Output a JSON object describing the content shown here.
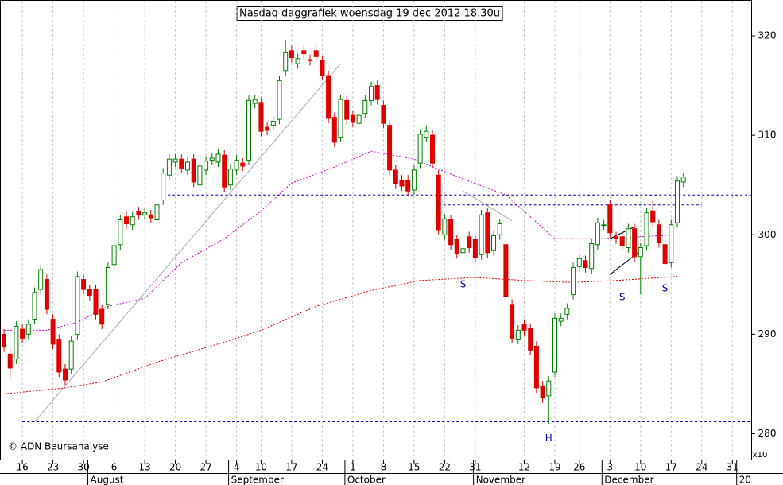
{
  "chart_data": {
    "type": "candlestick",
    "title": "Nasdaq daggrafiek woensdag 19 dec 2012 18.30u",
    "copyright": "© ADN Beursanalyse",
    "scale_note": "x10",
    "up_color": "#008000",
    "down_color": "#e00000",
    "dates": [
      "2012-07-11",
      "2012-07-12",
      "2012-07-13",
      "2012-07-16",
      "2012-07-17",
      "2012-07-18",
      "2012-07-19",
      "2012-07-20",
      "2012-07-23",
      "2012-07-24",
      "2012-07-25",
      "2012-07-26",
      "2012-07-27",
      "2012-07-30",
      "2012-07-31",
      "2012-08-01",
      "2012-08-02",
      "2012-08-03",
      "2012-08-06",
      "2012-08-07",
      "2012-08-08",
      "2012-08-09",
      "2012-08-10",
      "2012-08-13",
      "2012-08-14",
      "2012-08-15",
      "2012-08-16",
      "2012-08-17",
      "2012-08-20",
      "2012-08-21",
      "2012-08-22",
      "2012-08-23",
      "2012-08-24",
      "2012-08-27",
      "2012-08-28",
      "2012-08-29",
      "2012-08-30",
      "2012-08-31",
      "2012-09-04",
      "2012-09-05",
      "2012-09-06",
      "2012-09-07",
      "2012-09-10",
      "2012-09-11",
      "2012-09-12",
      "2012-09-13",
      "2012-09-14",
      "2012-09-17",
      "2012-09-18",
      "2012-09-19",
      "2012-09-20",
      "2012-09-21",
      "2012-09-24",
      "2012-09-25",
      "2012-09-26",
      "2012-09-27",
      "2012-09-28",
      "2012-10-01",
      "2012-10-02",
      "2012-10-03",
      "2012-10-04",
      "2012-10-05",
      "2012-10-08",
      "2012-10-09",
      "2012-10-10",
      "2012-10-11",
      "2012-10-12",
      "2012-10-15",
      "2012-10-16",
      "2012-10-17",
      "2012-10-18",
      "2012-10-19",
      "2012-10-22",
      "2012-10-23",
      "2012-10-24",
      "2012-10-25",
      "2012-10-26",
      "2012-10-31",
      "2012-11-01",
      "2012-11-02",
      "2012-11-05",
      "2012-11-06",
      "2012-11-07",
      "2012-11-08",
      "2012-11-09",
      "2012-11-12",
      "2012-11-13",
      "2012-11-14",
      "2012-11-15",
      "2012-11-16",
      "2012-11-19",
      "2012-11-20",
      "2012-11-21",
      "2012-11-23",
      "2012-11-26",
      "2012-11-27",
      "2012-11-28",
      "2012-11-29",
      "2012-11-30",
      "2012-12-03",
      "2012-12-04",
      "2012-12-05",
      "2012-12-06",
      "2012-12-07",
      "2012-12-10",
      "2012-12-11",
      "2012-12-12",
      "2012-12-13",
      "2012-12-14",
      "2012-12-17",
      "2012-12-18",
      "2012-12-19"
    ],
    "open": [
      290.0,
      288.0,
      287.5,
      290.5,
      290.0,
      291.5,
      294.5,
      295.5,
      291.5,
      289.5,
      286.5,
      286.5,
      290.0,
      295.5,
      294.5,
      294.5,
      292.5,
      293.0,
      297.0,
      299.0,
      301.8,
      301.0,
      302.3,
      302.0,
      302.0,
      301.5,
      303.5,
      306.0,
      307.3,
      307.6,
      306.5,
      307.6,
      305.0,
      306.5,
      307.5,
      307.3,
      308.0,
      305.0,
      306.5,
      307.2,
      307.5,
      313.2,
      313.3,
      310.8,
      311.0,
      311.6,
      316.5,
      318.5,
      317.2,
      318.5,
      317.6,
      318.5,
      317.5,
      316.0,
      311.8,
      309.8,
      313.5,
      312.0,
      311.2,
      312.2,
      313.5,
      315.0,
      313.0,
      311.0,
      306.5,
      305.5,
      305.5,
      304.5,
      307.2,
      309.8,
      310.0,
      306.0,
      300.0,
      301.5,
      299.5,
      298.2,
      299.8,
      299.5,
      298.0,
      302.2,
      298.4,
      300.0,
      299.0,
      293.0,
      289.5,
      291.0,
      290.6,
      288.8,
      284.8,
      283.8,
      286.2,
      291.3,
      292.0,
      294.0,
      296.8,
      297.4,
      296.6,
      299.0,
      301.0,
      303.0,
      299.8,
      299.8,
      298.7,
      300.6,
      297.8,
      298.9,
      302.4,
      301.0,
      299.0,
      297.2,
      301.2,
      305.3
    ],
    "high": [
      290.5,
      288.5,
      291.3,
      291.0,
      291.5,
      294.7,
      297.0,
      296.0,
      292.0,
      290.0,
      287.0,
      289.8,
      296.3,
      296.0,
      295.0,
      295.0,
      293.0,
      297.2,
      299.4,
      302.0,
      302.3,
      302.3,
      302.8,
      302.7,
      302.5,
      303.5,
      306.7,
      308.1,
      308.1,
      308.1,
      307.8,
      308.1,
      307.4,
      307.9,
      308.2,
      308.6,
      308.5,
      307.1,
      308.0,
      307.7,
      314.0,
      314.1,
      313.8,
      311.3,
      311.9,
      316.0,
      319.6,
      319.0,
      318.2,
      319.0,
      318.1,
      319.0,
      318.0,
      316.5,
      312.3,
      314.1,
      314.0,
      312.5,
      312.5,
      314.0,
      315.4,
      315.5,
      313.5,
      311.5,
      307.0,
      306.0,
      306.0,
      307.0,
      310.6,
      311.0,
      310.5,
      306.5,
      302.1,
      302.0,
      300.0,
      299.1,
      300.3,
      300.0,
      302.5,
      302.7,
      300.4,
      301.6,
      299.5,
      293.5,
      290.9,
      291.5,
      291.1,
      289.3,
      285.3,
      285.8,
      292.1,
      292.1,
      293.1,
      297.2,
      298.1,
      297.9,
      299.6,
      301.7,
      301.5,
      303.5,
      300.3,
      300.3,
      301.1,
      301.1,
      299.2,
      302.7,
      303.4,
      301.5,
      299.5,
      301.5,
      305.9,
      306.2
    ],
    "low": [
      288.2,
      285.5,
      287.0,
      289.1,
      289.5,
      291.0,
      294.0,
      292.0,
      288.5,
      285.7,
      284.9,
      286.0,
      289.5,
      294.0,
      293.4,
      291.5,
      290.5,
      292.5,
      296.5,
      298.5,
      300.6,
      300.5,
      301.5,
      301.5,
      301.2,
      301.0,
      303.0,
      305.5,
      306.8,
      306.2,
      306.0,
      304.8,
      304.5,
      306.0,
      307.0,
      306.8,
      304.3,
      304.5,
      306.0,
      306.4,
      307.0,
      312.7,
      309.9,
      310.0,
      310.5,
      311.1,
      316.0,
      317.3,
      316.7,
      317.7,
      317.0,
      317.4,
      315.5,
      311.2,
      308.8,
      309.3,
      311.1,
      310.8,
      310.7,
      311.7,
      313.0,
      313.1,
      310.7,
      306.0,
      304.6,
      304.4,
      303.9,
      304.0,
      306.7,
      309.3,
      306.7,
      300.0,
      299.5,
      298.5,
      297.6,
      296.3,
      298.2,
      297.2,
      297.5,
      297.7,
      297.9,
      299.5,
      293.3,
      289.1,
      289.0,
      289.9,
      287.9,
      284.1,
      283.1,
      281.0,
      285.7,
      290.8,
      291.5,
      293.5,
      296.3,
      296.2,
      296.1,
      298.5,
      300.5,
      299.7,
      299.1,
      298.4,
      298.2,
      297.3,
      294.0,
      298.4,
      300.8,
      298.7,
      296.6,
      296.7,
      300.7,
      304.8
    ],
    "close": [
      288.7,
      286.6,
      290.8,
      289.6,
      291.0,
      294.2,
      296.5,
      292.5,
      289.0,
      286.2,
      285.4,
      289.3,
      295.8,
      294.5,
      293.9,
      292.0,
      291.0,
      296.7,
      298.9,
      301.5,
      301.1,
      301.8,
      302.0,
      302.2,
      301.7,
      303.0,
      306.2,
      307.6,
      307.6,
      306.7,
      307.3,
      305.3,
      306.9,
      307.4,
      307.7,
      308.1,
      304.8,
      306.6,
      307.5,
      306.9,
      313.5,
      313.6,
      310.4,
      310.5,
      311.4,
      315.5,
      318.3,
      317.8,
      317.7,
      318.2,
      317.5,
      317.9,
      316.0,
      311.7,
      309.3,
      313.6,
      311.6,
      311.3,
      312.0,
      313.5,
      314.9,
      313.6,
      311.2,
      306.5,
      305.1,
      304.9,
      304.4,
      306.5,
      310.1,
      310.4,
      307.2,
      300.5,
      301.6,
      299.0,
      298.1,
      298.6,
      298.7,
      297.7,
      302.0,
      298.2,
      299.9,
      301.1,
      293.8,
      289.6,
      290.4,
      290.4,
      288.4,
      284.6,
      283.6,
      285.3,
      291.6,
      291.6,
      292.6,
      296.7,
      297.6,
      296.7,
      299.1,
      301.2,
      301.0,
      300.2,
      299.6,
      298.9,
      300.6,
      297.8,
      298.7,
      302.2,
      301.3,
      299.2,
      297.1,
      301.0,
      305.4,
      305.8
    ],
    "moving_averages": [
      {
        "color": "#cc00cc",
        "x": [
          "2012-07-11",
          "2012-07-20",
          "2012-07-27",
          "2012-08-03",
          "2012-08-13",
          "2012-08-21",
          "2012-08-30",
          "2012-09-10",
          "2012-09-17",
          "2012-09-26",
          "2012-10-04",
          "2012-10-15",
          "2012-10-25",
          "2012-11-07",
          "2012-11-19",
          "2012-11-30",
          "2012-12-18"
        ],
        "values": [
          290.4,
          290.4,
          291.2,
          292.8,
          293.6,
          297.2,
          299.6,
          302.4,
          305.2,
          306.8,
          308.4,
          307.6,
          305.6,
          304.0,
          299.6,
          299.6,
          300.0
        ]
      },
      {
        "color": "#dd0000",
        "x": [
          "2012-07-11",
          "2012-07-25",
          "2012-08-02",
          "2012-08-15",
          "2012-08-30",
          "2012-09-10",
          "2012-09-21",
          "2012-10-04",
          "2012-10-16",
          "2012-10-31",
          "2012-11-12",
          "2012-11-23",
          "2012-12-04",
          "2012-12-18"
        ],
        "values": [
          284.0,
          284.6,
          285.2,
          287.2,
          289.2,
          290.4,
          292.8,
          294.4,
          295.4,
          295.7,
          295.4,
          295.2,
          295.4,
          295.8
        ]
      }
    ],
    "levels": [
      {
        "color": "#0000aa",
        "value": 304.0,
        "from": "2012-08-16"
      },
      {
        "color": "#0000aa",
        "value": 303.0,
        "from": "2012-10-19",
        "to": "2012-12-24"
      },
      {
        "color": "#0000aa",
        "value": 281.2,
        "from": "2012-07-16"
      }
    ],
    "trendlines": [
      {
        "color": "#aaaaaa",
        "from": "2012-07-18",
        "to": "2012-09-27",
        "values": [
          281.2,
          317.2
        ]
      },
      {
        "color": "#aaaaaa",
        "from": "2012-10-25",
        "to": "2012-11-08",
        "values": [
          304.4,
          301.4
        ]
      },
      {
        "color": "#000000",
        "from": "2012-12-03",
        "to": "2012-12-10",
        "values": [
          296.0,
          298.4
        ]
      },
      {
        "color": "#000000",
        "from": "2012-12-03",
        "to": "2012-12-07",
        "values": [
          299.6,
          300.8
        ]
      }
    ],
    "annotations": [
      {
        "text": "S",
        "x": "2012-10-25",
        "y": 295.0,
        "color": "#0000aa"
      },
      {
        "text": "S",
        "x": "2012-12-05",
        "y": 293.7,
        "color": "#0000aa"
      },
      {
        "text": "S",
        "x": "2012-12-14",
        "y": 294.6,
        "color": "#0000aa"
      },
      {
        "text": "H",
        "x": "2012-11-16",
        "y": 279.5,
        "color": "#0000aa"
      }
    ],
    "ylim": [
      277.4,
      323.6
    ],
    "yticks": [
      280,
      290,
      300,
      310,
      320
    ],
    "xticks": [
      {
        "value": "2012-07-16",
        "label": "16"
      },
      {
        "value": "2012-07-23",
        "label": "23"
      },
      {
        "value": "2012-07-30",
        "label": "30"
      },
      {
        "value": "2012-08-06",
        "label": "6"
      },
      {
        "value": "2012-08-13",
        "label": "13"
      },
      {
        "value": "2012-08-20",
        "label": "20"
      },
      {
        "value": "2012-08-27",
        "label": "27"
      },
      {
        "value": "2012-09-04",
        "label": "4"
      },
      {
        "value": "2012-09-10",
        "label": "10"
      },
      {
        "value": "2012-09-17",
        "label": "17"
      },
      {
        "value": "2012-09-24",
        "label": "24"
      },
      {
        "value": "2012-10-01",
        "label": "1"
      },
      {
        "value": "2012-10-08",
        "label": "8"
      },
      {
        "value": "2012-10-15",
        "label": "15"
      },
      {
        "value": "2012-10-22",
        "label": "22"
      },
      {
        "value": "2012-10-31",
        "label": "31"
      },
      {
        "value": "2012-11-12",
        "label": "12"
      },
      {
        "value": "2012-11-19",
        "label": "19"
      },
      {
        "value": "2012-11-26",
        "label": "26"
      },
      {
        "value": "2012-12-03",
        "label": "3"
      },
      {
        "value": "2012-12-10",
        "label": "10"
      },
      {
        "value": "2012-12-17",
        "label": "17"
      },
      {
        "value": "2012-12-24",
        "label": "24"
      },
      {
        "value": "2012-12-31",
        "label": "31"
      }
    ],
    "months": [
      {
        "value": "2012-08-01",
        "label": "August"
      },
      {
        "value": "2012-09-04",
        "label": "September"
      },
      {
        "value": "2012-10-01",
        "label": "October"
      },
      {
        "value": "2012-11-01",
        "label": "November"
      },
      {
        "value": "2012-12-03",
        "label": "December"
      },
      {
        "value": "2013-01-02",
        "label": "20"
      }
    ],
    "grid": true
  }
}
